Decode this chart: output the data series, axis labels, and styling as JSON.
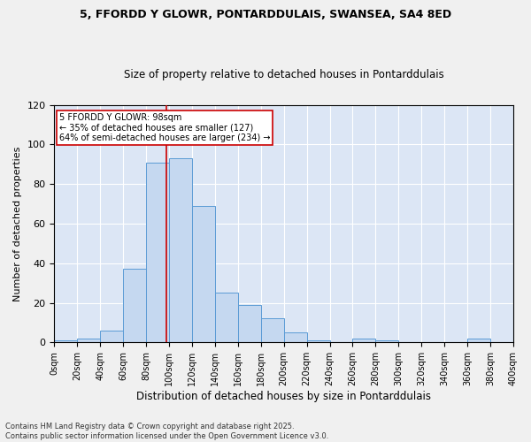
{
  "title1": "5, FFORDD Y GLOWR, PONTARDDULAIS, SWANSEA, SA4 8ED",
  "title2": "Size of property relative to detached houses in Pontarddulais",
  "xlabel": "Distribution of detached houses by size in Pontarddulais",
  "ylabel": "Number of detached properties",
  "bin_edges": [
    0,
    20,
    40,
    60,
    80,
    100,
    120,
    140,
    160,
    180,
    200,
    220,
    240,
    260,
    280,
    300,
    320,
    340,
    360,
    380,
    400
  ],
  "counts": [
    1,
    2,
    6,
    37,
    91,
    93,
    69,
    25,
    19,
    12,
    5,
    1,
    0,
    2,
    1,
    0,
    0,
    0,
    2,
    0
  ],
  "bar_color": "#c5d8f0",
  "bar_edge_color": "#5b9bd5",
  "property_size": 98,
  "vline_color": "#cc0000",
  "annotation_line1": "5 FFORDD Y GLOWR: 98sqm",
  "annotation_line2": "← 35% of detached houses are smaller (127)",
  "annotation_line3": "64% of semi-detached houses are larger (234) →",
  "annotation_box_color": "#ffffff",
  "annotation_box_edge_color": "#cc0000",
  "footer_text": "Contains HM Land Registry data © Crown copyright and database right 2025.\nContains public sector information licensed under the Open Government Licence v3.0.",
  "background_color": "#dce6f5",
  "fig_background_color": "#f0f0f0",
  "ylim": [
    0,
    120
  ],
  "xlim": [
    0,
    400
  ]
}
